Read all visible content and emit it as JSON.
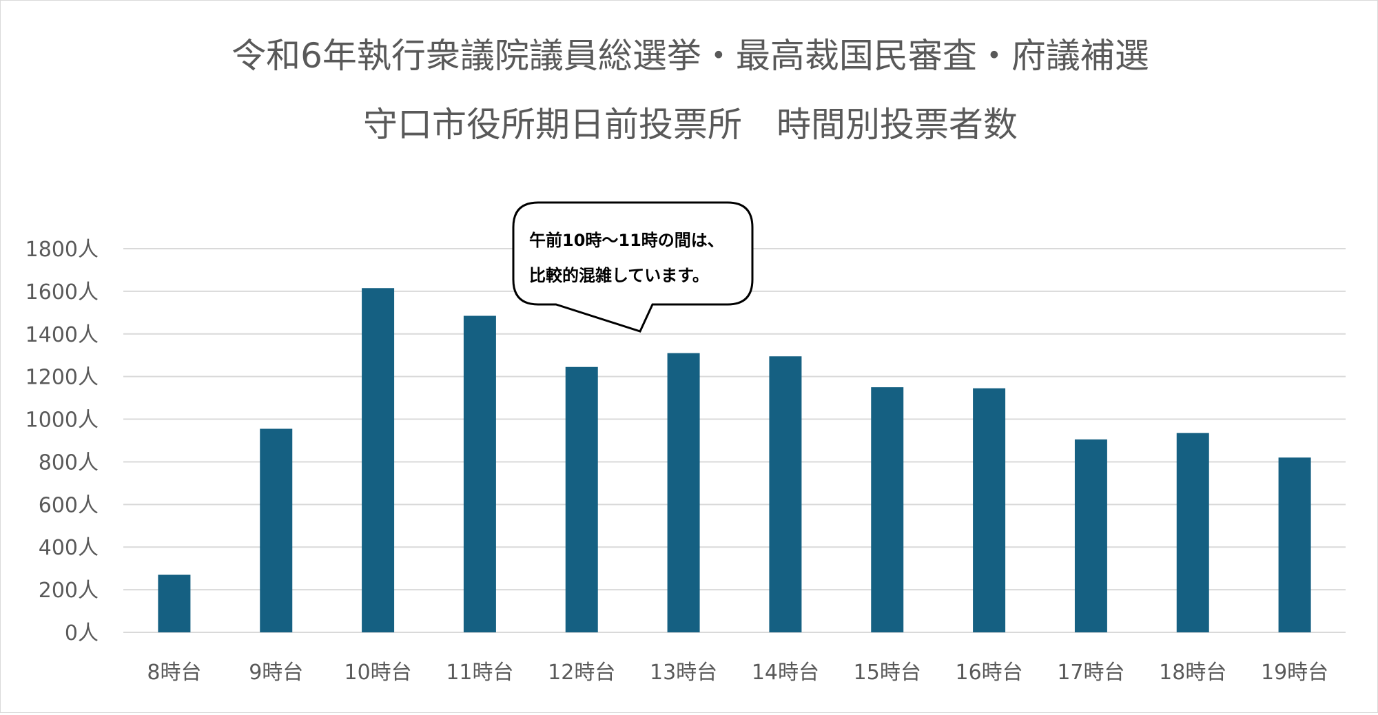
{
  "chart_data": {
    "type": "bar",
    "title_line1": "令和6年執行衆議院議員総選挙・最高裁国民審査・府議補選",
    "title_line2": "守口市役所期日前投票所　時間別投票者数",
    "categories": [
      "8時台",
      "9時台",
      "10時台",
      "11時台",
      "12時台",
      "13時台",
      "14時台",
      "15時台",
      "16時台",
      "17時台",
      "18時台",
      "19時台"
    ],
    "values": [
      270,
      955,
      1615,
      1485,
      1245,
      1310,
      1295,
      1150,
      1145,
      905,
      935,
      820
    ],
    "ylim": [
      0,
      1800
    ],
    "ytick_step": 200,
    "ytick_labels": [
      "0人",
      "200人",
      "400人",
      "600人",
      "800人",
      "1000人",
      "1200人",
      "1400人",
      "1600人",
      "1800人"
    ],
    "grid": true,
    "bar_color": "#156082",
    "annotation": {
      "line1": "午前10時～11時の間は、",
      "line2": "比較的混雑しています。"
    }
  }
}
